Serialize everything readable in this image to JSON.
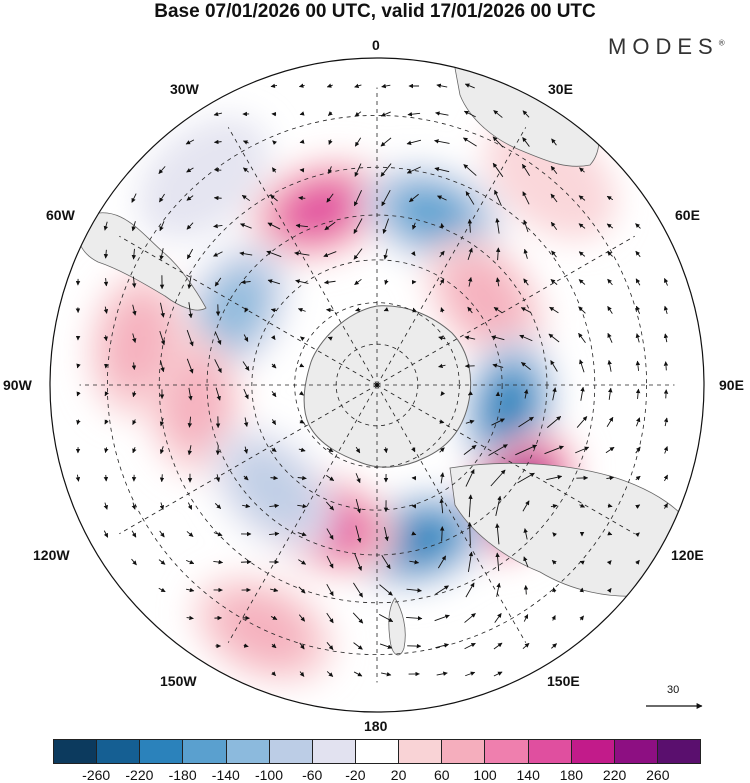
{
  "title": "Base 07/01/2026 00 UTC, valid 17/01/2026 00 UTC",
  "brand": "MODES",
  "brand_mark": "®",
  "longitude_labels": {
    "lon_0": "0",
    "lon_30e": "30E",
    "lon_60e": "60E",
    "lon_90e": "90E",
    "lon_120e": "120E",
    "lon_150e": "150E",
    "lon_180": "180",
    "lon_150w": "150W",
    "lon_120w": "120W",
    "lon_90w": "90W",
    "lon_60w": "60W",
    "lon_30w": "30W"
  },
  "vector_scale": {
    "label": "30"
  },
  "colorbar": {
    "ticks": [
      "-260",
      "-220",
      "-180",
      "-140",
      "-100",
      "-60",
      "-20",
      "20",
      "60",
      "100",
      "140",
      "180",
      "220",
      "260"
    ],
    "colors": [
      "#0c3a5e",
      "#155f93",
      "#2b82bb",
      "#5aa0cf",
      "#8cbadd",
      "#bccde6",
      "#e2e2f0",
      "#ffffff",
      "#f9d3d6",
      "#f5aebd",
      "#ef7fae",
      "#e04f9f",
      "#c21b8a",
      "#8d0f82",
      "#5a0f6e"
    ]
  },
  "anomaly_features": [
    {
      "id": "pos-1",
      "lat": -47,
      "lon": -18,
      "value": 150
    },
    {
      "id": "neg-1",
      "lat": -48,
      "lon": 18,
      "value": -170
    },
    {
      "id": "neg-2",
      "lat": -52,
      "lon": -62,
      "value": -110
    },
    {
      "id": "pos-2",
      "lat": -57,
      "lon": 52,
      "value": 90
    },
    {
      "id": "pos-3",
      "lat": -47,
      "lon": -95,
      "value": 70
    },
    {
      "id": "neg-3",
      "lat": -58,
      "lon": 100,
      "value": -180
    },
    {
      "id": "pos-4",
      "lat": -48,
      "lon": 128,
      "value": 230
    },
    {
      "id": "neg-4",
      "lat": -52,
      "lon": 165,
      "value": -210
    },
    {
      "id": "pos-5",
      "lat": -55,
      "lon": -160,
      "value": 150
    },
    {
      "id": "neg-5",
      "lat": -55,
      "lon": -135,
      "value": -60
    },
    {
      "id": "pos-6",
      "lat": -30,
      "lon": -155,
      "value": 70
    },
    {
      "id": "pos-7",
      "lat": -30,
      "lon": 40,
      "value": 50
    },
    {
      "id": "pos-8",
      "lat": -35,
      "lon": -80,
      "value": 60
    },
    {
      "id": "neg-6",
      "lat": -30,
      "lon": -40,
      "value": -40
    }
  ]
}
